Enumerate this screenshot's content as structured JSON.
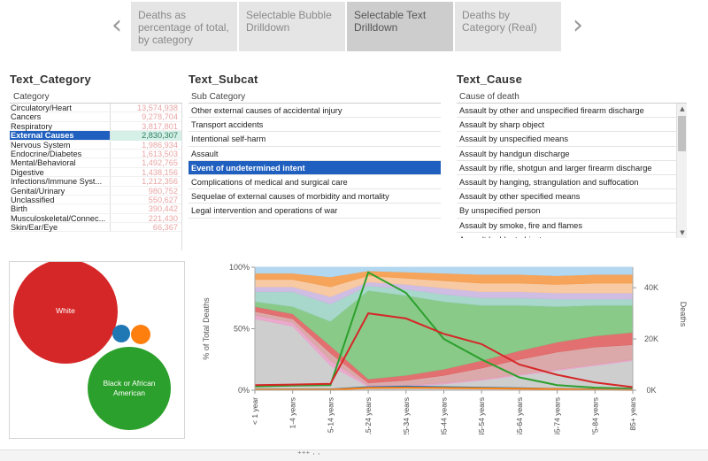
{
  "story": {
    "tabs": [
      {
        "label": "Deaths as percentage of total, by category",
        "active": false
      },
      {
        "label": "Selectable Bubble Drilldown",
        "active": false
      },
      {
        "label": "Selectable Text Drilldown",
        "active": true
      },
      {
        "label": "Deaths by Category (Real)",
        "active": false
      }
    ],
    "prev_icon": "chevron-left-icon",
    "next_icon": "chevron-right-icon"
  },
  "category_panel": {
    "title": "Text_Category",
    "column_header": "Category",
    "rows": [
      {
        "name": "Circulatory/Heart",
        "value": "13,574,938"
      },
      {
        "name": "Cancers",
        "value": "9,278,704"
      },
      {
        "name": "Respiratory",
        "value": "3,817,801"
      },
      {
        "name": "External Causes",
        "value": "2,830,307",
        "selected": true
      },
      {
        "name": "Nervous System",
        "value": "1,986,934"
      },
      {
        "name": "Endocrine/Diabetes",
        "value": "1,613,503"
      },
      {
        "name": "Mental/Behavioral",
        "value": "1,492,765"
      },
      {
        "name": "Digestive",
        "value": "1,438,156"
      },
      {
        "name": "Infections/Immune Syst...",
        "value": "1,212,356"
      },
      {
        "name": "Genital/Urinary",
        "value": "980,752"
      },
      {
        "name": "Unclassified",
        "value": "550,627"
      },
      {
        "name": "Birth",
        "value": "390,442"
      },
      {
        "name": "Musculoskeletal/Connec...",
        "value": "221,430"
      },
      {
        "name": "Skin/Ear/Eye",
        "value": "66,367"
      }
    ]
  },
  "subcat_panel": {
    "title": "Text_Subcat",
    "column_header": "Sub Category",
    "rows": [
      {
        "name": "Other external causes of accidental injury"
      },
      {
        "name": "Transport accidents"
      },
      {
        "name": "Intentional self-harm"
      },
      {
        "name": "Assault"
      },
      {
        "name": "Event of undetermined intent",
        "selected": true
      },
      {
        "name": "Complications of medical and surgical care"
      },
      {
        "name": "Sequelae of external causes of morbidity and mortality"
      },
      {
        "name": "Legal intervention and operations of war"
      }
    ]
  },
  "cause_panel": {
    "title": "Text_Cause",
    "column_header": "Cause of death",
    "rows": [
      {
        "name": "Assault by other and unspecified firearm discharge"
      },
      {
        "name": "Assault by sharp object"
      },
      {
        "name": "Assault by unspecified means"
      },
      {
        "name": "Assault by handgun discharge"
      },
      {
        "name": "Assault by rifle, shotgun and larger firearm discharge"
      },
      {
        "name": "Assault by hanging, strangulation and suffocation"
      },
      {
        "name": "Assault by other specified means"
      },
      {
        "name": "By unspecified person"
      },
      {
        "name": "Assault by smoke, fire and flames"
      },
      {
        "name": "Assault by blunt object"
      }
    ]
  },
  "bubble_chart": {
    "bubbles": [
      {
        "label": "White",
        "color": "#d62728"
      },
      {
        "label": "Black or African American",
        "color": "#2ca02c"
      },
      {
        "label": "",
        "color": "#1f77b4"
      },
      {
        "label": "",
        "color": "#ff7f0e"
      }
    ]
  },
  "chart_data": {
    "type": "area",
    "categories": [
      "< 1 year",
      "1-4 years",
      "5-14 years",
      "15-24 years",
      "25-34 years",
      "35-44 years",
      "45-54 years",
      "55-64 years",
      "65-74 years",
      "75-84 years",
      "85+ years"
    ],
    "ylabel_left": "% of Total Deaths",
    "ylabel_right": "Deaths",
    "left_ticks": [
      "0%",
      "50%",
      "100%"
    ],
    "right_ticks": [
      "0K",
      "20K",
      "40K"
    ],
    "ylim_left": [
      0,
      100
    ],
    "ylim_right": [
      0,
      48000
    ],
    "stack_series": [
      {
        "name": "gray",
        "color": "#c9c9c9",
        "values": [
          58,
          52,
          20,
          3,
          3,
          5,
          8,
          12,
          16,
          20,
          24
        ]
      },
      {
        "name": "pink",
        "color": "#e8a0c8",
        "values": [
          3,
          3,
          4,
          1,
          1,
          1,
          1,
          1,
          1,
          1,
          1
        ]
      },
      {
        "name": "rosy",
        "color": "#d7a0a0",
        "values": [
          3,
          3,
          6,
          2,
          4,
          6,
          9,
          12,
          14,
          14,
          12
        ]
      },
      {
        "name": "red",
        "color": "#e06060",
        "values": [
          4,
          4,
          6,
          3,
          4,
          5,
          6,
          7,
          8,
          9,
          10
        ]
      },
      {
        "name": "green",
        "color": "#7cc47c",
        "values": [
          4,
          6,
          20,
          72,
          65,
          55,
          45,
          37,
          29,
          25,
          22
        ]
      },
      {
        "name": "teal",
        "color": "#9fd3c7",
        "values": [
          8,
          12,
          14,
          4,
          5,
          6,
          6,
          6,
          6,
          5,
          5
        ]
      },
      {
        "name": "lavender",
        "color": "#cbb6e0",
        "values": [
          4,
          4,
          6,
          3,
          4,
          5,
          5,
          5,
          5,
          5,
          5
        ]
      },
      {
        "name": "peach",
        "color": "#f6c49a",
        "values": [
          6,
          6,
          8,
          5,
          5,
          6,
          7,
          7,
          7,
          8,
          8
        ]
      },
      {
        "name": "orange",
        "color": "#f59a48",
        "values": [
          5,
          5,
          8,
          4,
          5,
          6,
          7,
          7,
          7,
          7,
          7
        ]
      },
      {
        "name": "sky",
        "color": "#aad4f0",
        "values": [
          5,
          5,
          8,
          3,
          4,
          5,
          6,
          6,
          7,
          6,
          6
        ]
      }
    ],
    "line_series": [
      {
        "name": "green",
        "color": "#2ca02c",
        "values": [
          1500,
          1800,
          2000,
          46000,
          38000,
          20000,
          12000,
          5000,
          2000,
          1000,
          600
        ]
      },
      {
        "name": "red",
        "color": "#d62728",
        "values": [
          2000,
          2200,
          2500,
          30000,
          28000,
          22000,
          18000,
          10000,
          6000,
          3000,
          1200
        ]
      },
      {
        "name": "blue",
        "color": "#1f77b4",
        "values": [
          300,
          300,
          300,
          1200,
          1400,
          1200,
          1000,
          800,
          500,
          300,
          200
        ]
      },
      {
        "name": "orange",
        "color": "#ff7f0e",
        "values": [
          200,
          200,
          200,
          900,
          1000,
          900,
          800,
          600,
          400,
          200,
          100
        ]
      }
    ]
  }
}
